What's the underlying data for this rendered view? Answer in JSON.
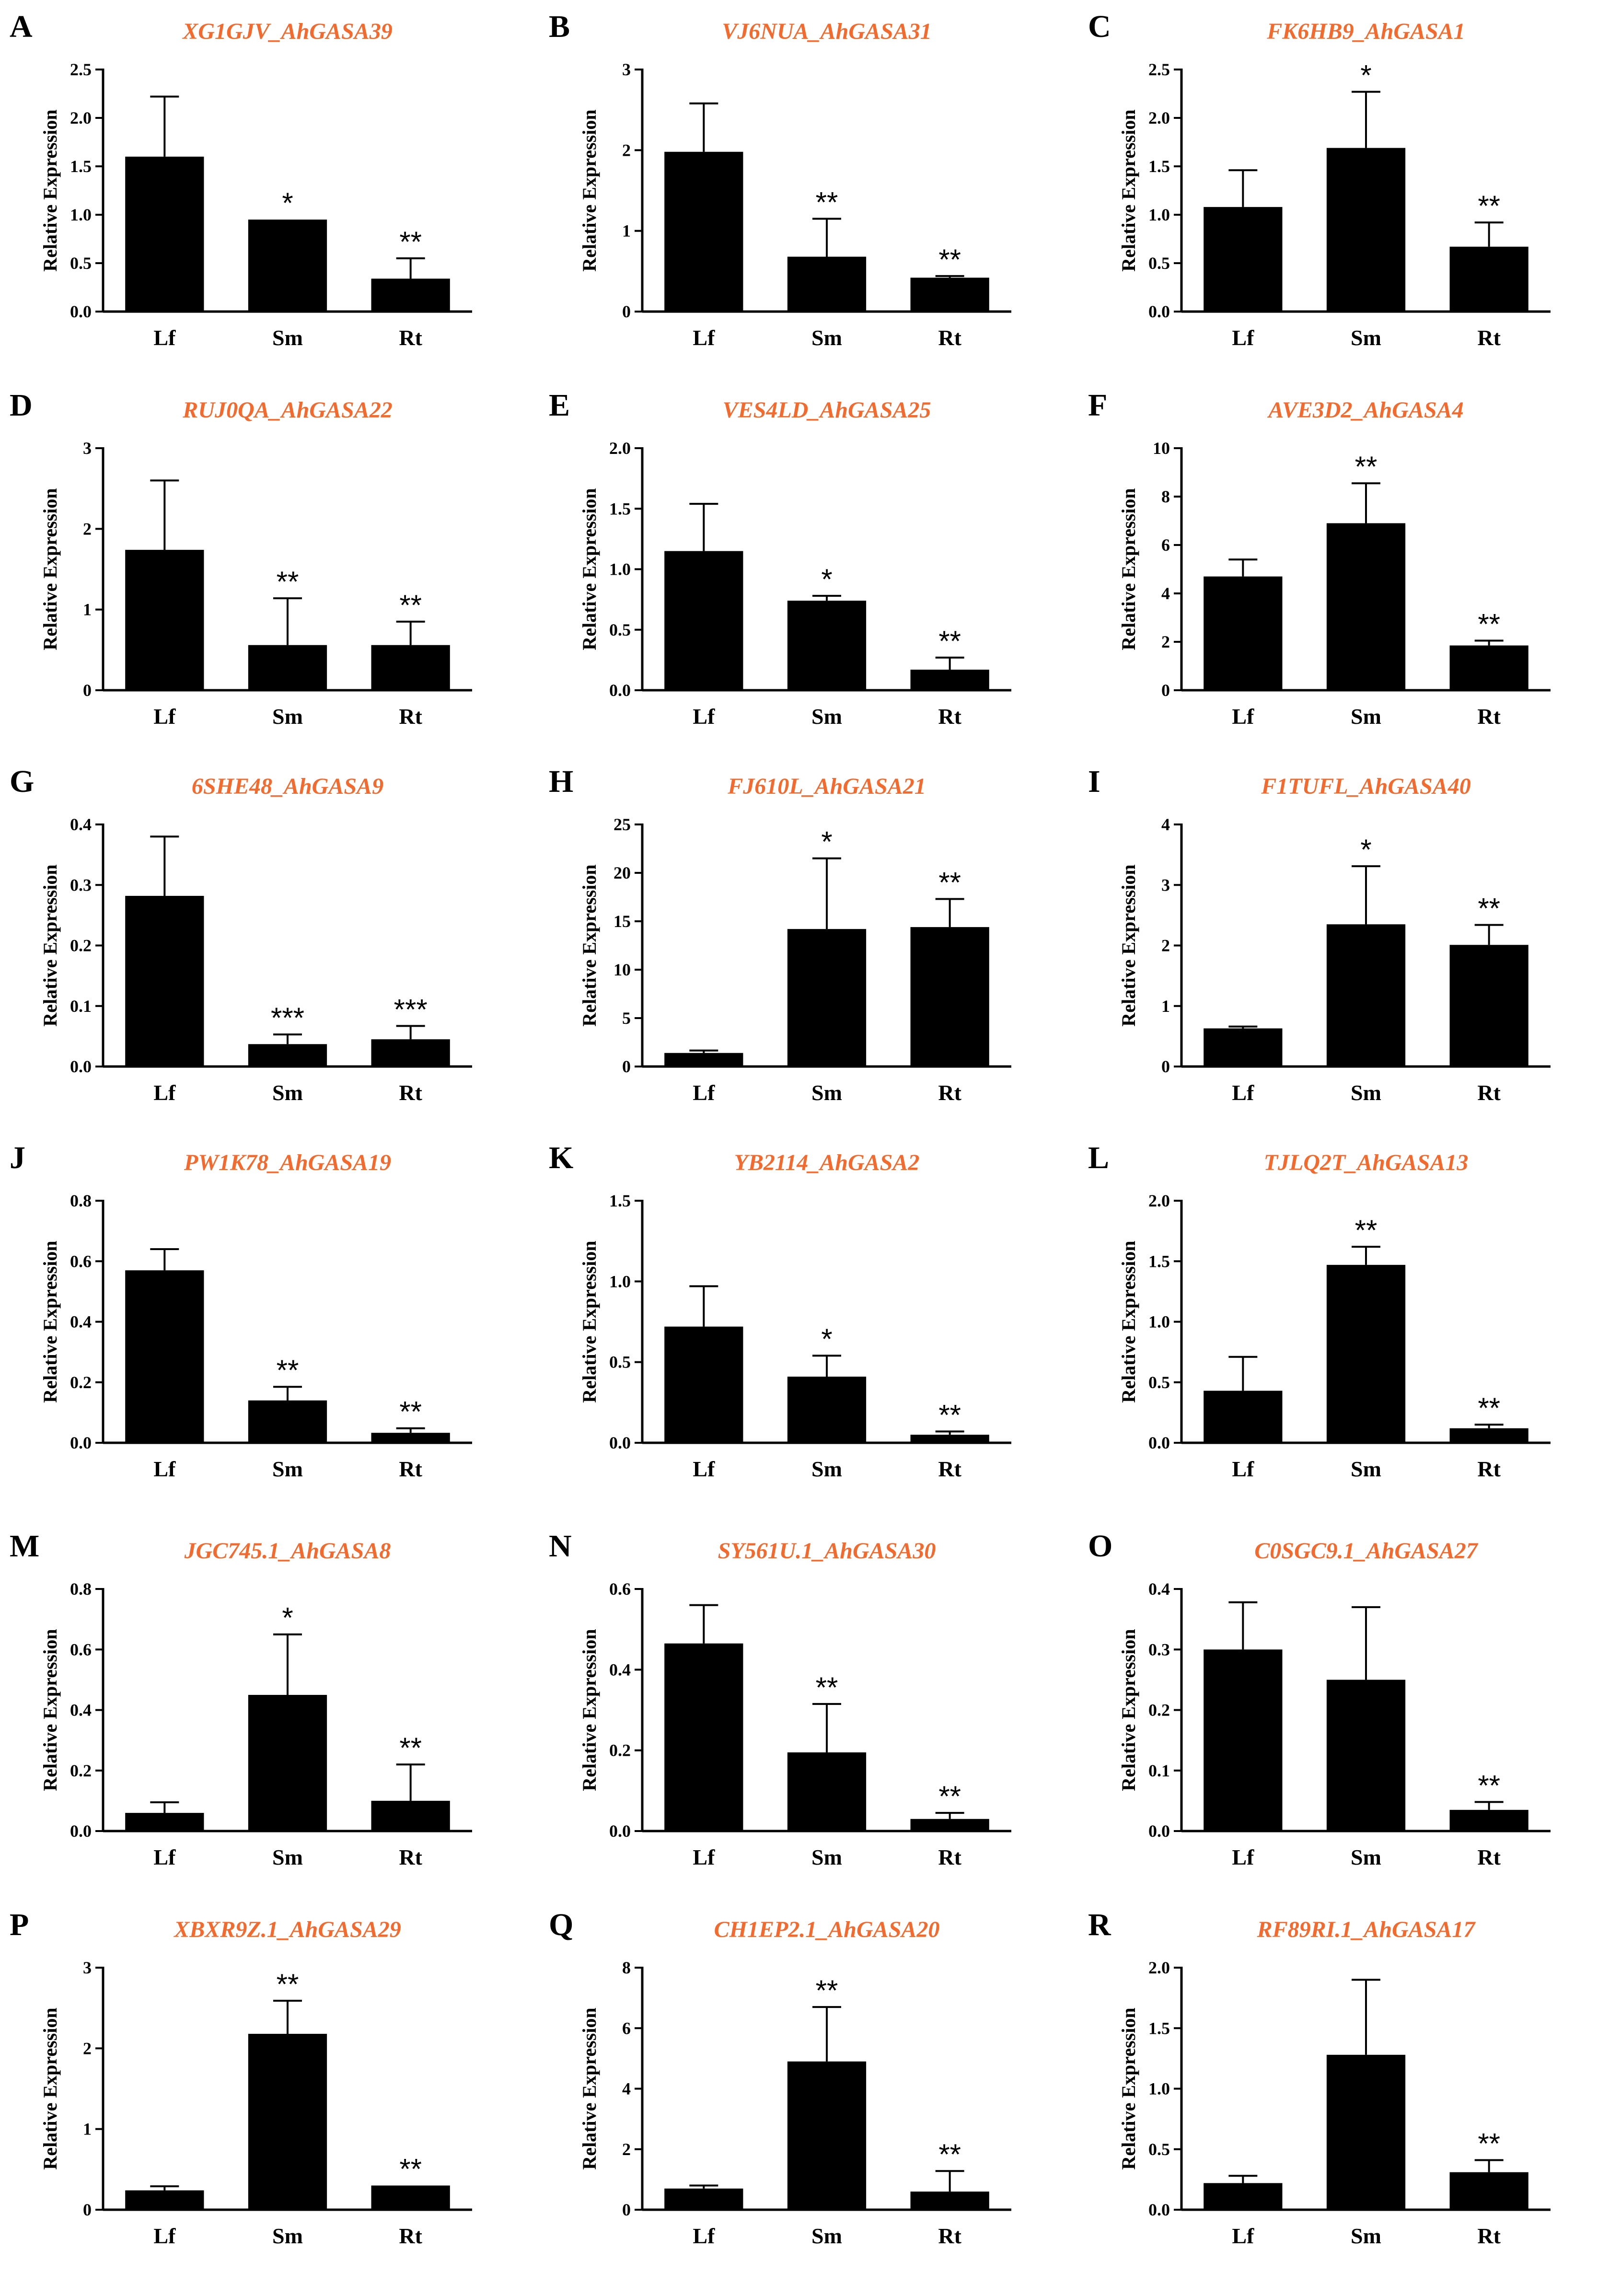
{
  "chart_data": [
    {
      "panel": "A",
      "title": "XG1GJV_AhGASA39",
      "type": "bar",
      "ylabel": "Relative Expression",
      "categories": [
        "Lf",
        "Sm",
        "Rt"
      ],
      "values": [
        1.6,
        0.95,
        0.34
      ],
      "errors": [
        0.62,
        0.0,
        0.21
      ],
      "significance": [
        "",
        "*",
        "**"
      ],
      "ylim": [
        0,
        2.5
      ],
      "yticks": [
        0,
        0.5,
        1.0,
        1.5,
        2.0,
        2.5
      ],
      "ytick_labels": [
        "0.0",
        "0.5",
        "1.0",
        "1.5",
        "2.0",
        "2.5"
      ]
    },
    {
      "panel": "B",
      "title": "VJ6NUA_AhGASA31",
      "type": "bar",
      "ylabel": "Relative Expression",
      "categories": [
        "Lf",
        "Sm",
        "Rt"
      ],
      "values": [
        1.98,
        0.68,
        0.42
      ],
      "errors": [
        0.6,
        0.47,
        0.02
      ],
      "significance": [
        "",
        "**",
        "**"
      ],
      "ylim": [
        0,
        3
      ],
      "yticks": [
        0,
        1,
        2,
        3
      ],
      "ytick_labels": [
        "0",
        "1",
        "2",
        "3"
      ]
    },
    {
      "panel": "C",
      "title": "FK6HB9_AhGASA1",
      "type": "bar",
      "ylabel": "Relative Expression",
      "categories": [
        "Lf",
        "Sm",
        "Rt"
      ],
      "values": [
        1.08,
        1.69,
        0.67
      ],
      "errors": [
        0.38,
        0.58,
        0.25
      ],
      "significance": [
        "",
        "*",
        "**"
      ],
      "ylim": [
        0,
        2.5
      ],
      "yticks": [
        0,
        0.5,
        1.0,
        1.5,
        2.0,
        2.5
      ],
      "ytick_labels": [
        "0.0",
        "0.5",
        "1.0",
        "1.5",
        "2.0",
        "2.5"
      ]
    },
    {
      "panel": "D",
      "title": "RUJ0QA_AhGASA22",
      "type": "bar",
      "ylabel": "Relative Expression",
      "categories": [
        "Lf",
        "Sm",
        "Rt"
      ],
      "values": [
        1.74,
        0.56,
        0.56
      ],
      "errors": [
        0.86,
        0.58,
        0.29
      ],
      "significance": [
        "",
        "**",
        "**"
      ],
      "ylim": [
        0,
        3
      ],
      "yticks": [
        0,
        1,
        2,
        3
      ],
      "ytick_labels": [
        "0",
        "1",
        "2",
        "3"
      ]
    },
    {
      "panel": "E",
      "title": "VES4LD_AhGASA25",
      "type": "bar",
      "ylabel": "Relative Expression",
      "categories": [
        "Lf",
        "Sm",
        "Rt"
      ],
      "values": [
        1.15,
        0.74,
        0.17
      ],
      "errors": [
        0.39,
        0.04,
        0.1
      ],
      "significance": [
        "",
        "*",
        "**"
      ],
      "ylim": [
        0,
        2.0
      ],
      "yticks": [
        0,
        0.5,
        1.0,
        1.5,
        2.0
      ],
      "ytick_labels": [
        "0.0",
        "0.5",
        "1.0",
        "1.5",
        "2.0"
      ]
    },
    {
      "panel": "F",
      "title": "AVE3D2_AhGASA4",
      "type": "bar",
      "ylabel": "Relative Expression",
      "categories": [
        "Lf",
        "Sm",
        "Rt"
      ],
      "values": [
        4.7,
        6.9,
        1.85
      ],
      "errors": [
        0.7,
        1.65,
        0.2
      ],
      "significance": [
        "",
        "**",
        "**"
      ],
      "ylim": [
        0,
        10
      ],
      "yticks": [
        0,
        2,
        4,
        6,
        8,
        10
      ],
      "ytick_labels": [
        "0",
        "2",
        "4",
        "6",
        "8",
        "10"
      ]
    },
    {
      "panel": "G",
      "title": "6SHE48_AhGASA9",
      "type": "bar",
      "ylabel": "Relative Expression",
      "categories": [
        "Lf",
        "Sm",
        "Rt"
      ],
      "values": [
        0.282,
        0.037,
        0.045
      ],
      "errors": [
        0.098,
        0.016,
        0.022
      ],
      "significance": [
        "",
        "***",
        "***"
      ],
      "ylim": [
        0,
        0.4
      ],
      "yticks": [
        0,
        0.1,
        0.2,
        0.3,
        0.4
      ],
      "ytick_labels": [
        "0.0",
        "0.1",
        "0.2",
        "0.3",
        "0.4"
      ]
    },
    {
      "panel": "H",
      "title": "FJ610L_AhGASA21",
      "type": "bar",
      "ylabel": "Relative Expression",
      "categories": [
        "Lf",
        "Sm",
        "Rt"
      ],
      "values": [
        1.4,
        14.2,
        14.4
      ],
      "errors": [
        0.25,
        7.3,
        2.9
      ],
      "significance": [
        "",
        "*",
        "**"
      ],
      "ylim": [
        0,
        25
      ],
      "yticks": [
        0,
        5,
        10,
        15,
        20,
        25
      ],
      "ytick_labels": [
        "0",
        "5",
        "10",
        "15",
        "20",
        "25"
      ]
    },
    {
      "panel": "I",
      "title": "F1TUFL_AhGASA40",
      "type": "bar",
      "ylabel": "Relative Expression",
      "categories": [
        "Lf",
        "Sm",
        "Rt"
      ],
      "values": [
        0.63,
        2.35,
        2.01
      ],
      "errors": [
        0.03,
        0.96,
        0.33
      ],
      "significance": [
        "",
        "*",
        "**"
      ],
      "ylim": [
        0,
        4
      ],
      "yticks": [
        0,
        1,
        2,
        3,
        4
      ],
      "ytick_labels": [
        "0",
        "1",
        "2",
        "3",
        "4"
      ]
    },
    {
      "panel": "J",
      "title": "PW1K78_AhGASA19",
      "type": "bar",
      "ylabel": "Relative Expression",
      "categories": [
        "Lf",
        "Sm",
        "Rt"
      ],
      "values": [
        0.57,
        0.14,
        0.033
      ],
      "errors": [
        0.07,
        0.045,
        0.015
      ],
      "significance": [
        "",
        "**",
        "**"
      ],
      "ylim": [
        0,
        0.8
      ],
      "yticks": [
        0,
        0.2,
        0.4,
        0.6,
        0.8
      ],
      "ytick_labels": [
        "0.0",
        "0.2",
        "0.4",
        "0.6",
        "0.8"
      ]
    },
    {
      "panel": "K",
      "title": "YB2114_AhGASA2",
      "type": "bar",
      "ylabel": "Relative Expression",
      "categories": [
        "Lf",
        "Sm",
        "Rt"
      ],
      "values": [
        0.72,
        0.41,
        0.05
      ],
      "errors": [
        0.25,
        0.13,
        0.02
      ],
      "significance": [
        "",
        "*",
        "**"
      ],
      "ylim": [
        0,
        1.5
      ],
      "yticks": [
        0,
        0.5,
        1.0,
        1.5
      ],
      "ytick_labels": [
        "0.0",
        "0.5",
        "1.0",
        "1.5"
      ]
    },
    {
      "panel": "L",
      "title": "TJLQ2T_AhGASA13",
      "type": "bar",
      "ylabel": "Relative Expression",
      "categories": [
        "Lf",
        "Sm",
        "Rt"
      ],
      "values": [
        0.43,
        1.47,
        0.12
      ],
      "errors": [
        0.28,
        0.15,
        0.03
      ],
      "significance": [
        "",
        "**",
        "**"
      ],
      "ylim": [
        0,
        2.0
      ],
      "yticks": [
        0,
        0.5,
        1.0,
        1.5,
        2.0
      ],
      "ytick_labels": [
        "0.0",
        "0.5",
        "1.0",
        "1.5",
        "2.0"
      ]
    },
    {
      "panel": "M",
      "title": "JGC745.1_AhGASA8",
      "type": "bar",
      "ylabel": "Relative Expression",
      "categories": [
        "Lf",
        "Sm",
        "Rt"
      ],
      "values": [
        0.06,
        0.45,
        0.1
      ],
      "errors": [
        0.035,
        0.2,
        0.12
      ],
      "significance": [
        "",
        "*",
        "**"
      ],
      "ylim": [
        0,
        0.8
      ],
      "yticks": [
        0,
        0.2,
        0.4,
        0.6,
        0.8
      ],
      "ytick_labels": [
        "0.0",
        "0.2",
        "0.4",
        "0.6",
        "0.8"
      ]
    },
    {
      "panel": "N",
      "title": "SY561U.1_AhGASA30",
      "type": "bar",
      "ylabel": "Relative Expression",
      "categories": [
        "Lf",
        "Sm",
        "Rt"
      ],
      "values": [
        0.465,
        0.195,
        0.03
      ],
      "errors": [
        0.095,
        0.12,
        0.015
      ],
      "significance": [
        "",
        "**",
        "**"
      ],
      "ylim": [
        0,
        0.6
      ],
      "yticks": [
        0,
        0.2,
        0.4,
        0.6
      ],
      "ytick_labels": [
        "0.0",
        "0.2",
        "0.4",
        "0.6"
      ]
    },
    {
      "panel": "O",
      "title": "C0SGC9.1_AhGASA27",
      "type": "bar",
      "ylabel": "Relative Expression",
      "categories": [
        "Lf",
        "Sm",
        "Rt"
      ],
      "values": [
        0.3,
        0.25,
        0.035
      ],
      "errors": [
        0.078,
        0.12,
        0.013
      ],
      "significance": [
        "",
        "",
        "**"
      ],
      "ylim": [
        0,
        0.4
      ],
      "yticks": [
        0,
        0.1,
        0.2,
        0.3,
        0.4
      ],
      "ytick_labels": [
        "0.0",
        "0.1",
        "0.2",
        "0.3",
        "0.4"
      ]
    },
    {
      "panel": "P",
      "title": "XBXR9Z.1_AhGASA29",
      "type": "bar",
      "ylabel": "Relative Expression",
      "categories": [
        "Lf",
        "Sm",
        "Rt"
      ],
      "values": [
        0.24,
        2.18,
        0.3
      ],
      "errors": [
        0.05,
        0.41,
        0.0
      ],
      "significance": [
        "",
        "**",
        "**"
      ],
      "ylim": [
        0,
        3
      ],
      "yticks": [
        0,
        1,
        2,
        3
      ],
      "ytick_labels": [
        "0",
        "1",
        "2",
        "3"
      ]
    },
    {
      "panel": "Q",
      "title": "CH1EP2.1_AhGASA20",
      "type": "bar",
      "ylabel": "Relative Expression",
      "categories": [
        "Lf",
        "Sm",
        "Rt"
      ],
      "values": [
        0.7,
        4.9,
        0.6
      ],
      "errors": [
        0.1,
        1.8,
        0.68
      ],
      "significance": [
        "",
        "**",
        "**"
      ],
      "ylim": [
        0,
        8
      ],
      "yticks": [
        0,
        2,
        4,
        6,
        8
      ],
      "ytick_labels": [
        "0",
        "2",
        "4",
        "6",
        "8"
      ]
    },
    {
      "panel": "R",
      "title": "RF89RI.1_AhGASA17",
      "type": "bar",
      "ylabel": "Relative Expression",
      "categories": [
        "Lf",
        "Sm",
        "Rt"
      ],
      "values": [
        0.22,
        1.28,
        0.31
      ],
      "errors": [
        0.06,
        0.62,
        0.1
      ],
      "significance": [
        "",
        "",
        "**"
      ],
      "ylim": [
        0,
        2.0
      ],
      "yticks": [
        0,
        0.5,
        1.0,
        1.5,
        2.0
      ],
      "ytick_labels": [
        "0.0",
        "0.5",
        "1.0",
        "1.5",
        "2.0"
      ]
    }
  ],
  "colors": {
    "bar": "#000000",
    "title": "#f26a2d",
    "axis": "#000000",
    "background": "#ffffff"
  }
}
